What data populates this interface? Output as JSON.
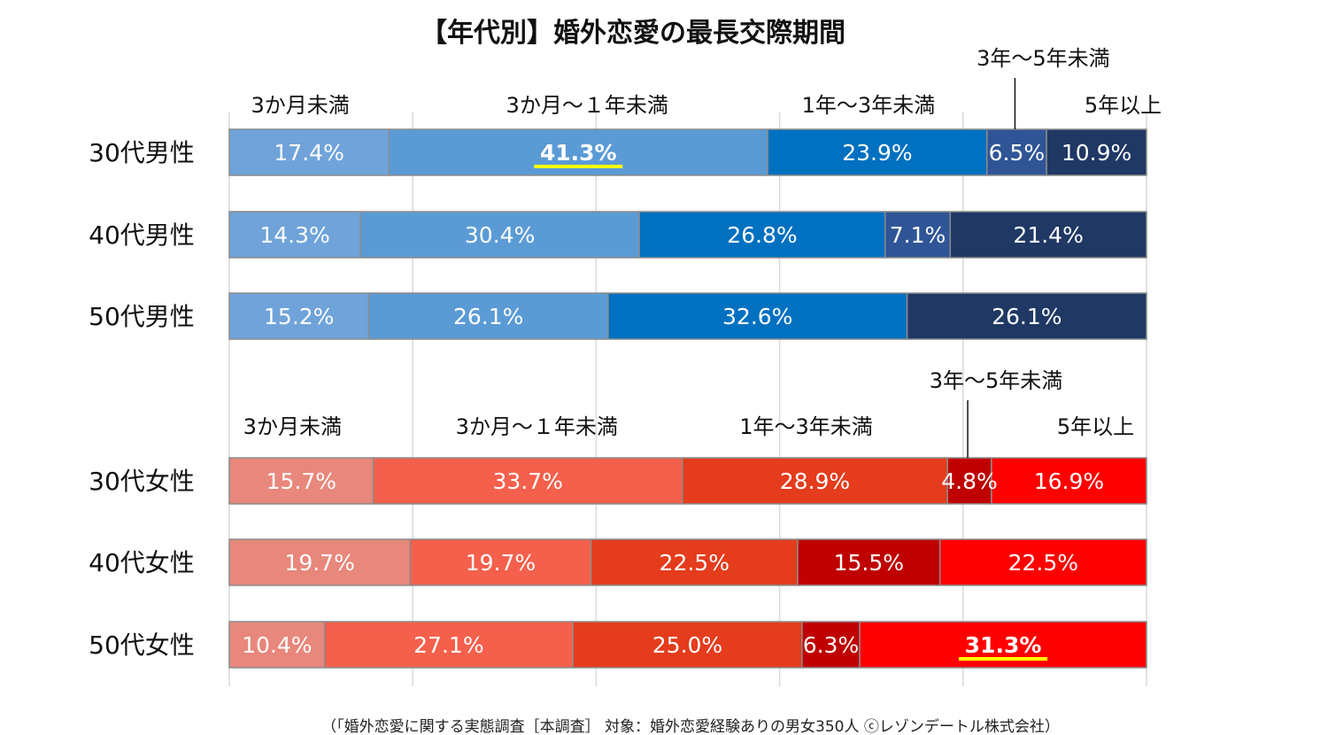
{
  "title": "【年代別】婚外恋愛の最長交際期間",
  "source": "（「婚外恋愛に関する実態調査［本調査］ 対象：婚外恋愛経験ありの男女350人 ⓒレゾンデートル株式会社）",
  "chart_data": {
    "type": "bar",
    "orientation": "horizontal",
    "stacked": true,
    "normalized": true,
    "title": "【年代別】婚外恋愛の最長交際期間",
    "xlim": [
      0,
      100
    ],
    "grid": true,
    "categories": [
      "3か月未満",
      "3か月～１年未満",
      "1年～3年未満",
      "3年～5年未満",
      "5年以上"
    ],
    "groups": [
      {
        "name": "male",
        "colors": [
          "#6fa3d9",
          "#5b9bd5",
          "#0070c0",
          "#2f5597",
          "#1f3864"
        ],
        "rows": [
          {
            "label": "30代男性",
            "values": [
              17.4,
              41.3,
              23.9,
              6.5,
              10.9
            ],
            "display": [
              "17.4%",
              "41.3%",
              "23.9%",
              "6.5%",
              "10.9%"
            ],
            "highlight": 1
          },
          {
            "label": "40代男性",
            "values": [
              14.3,
              30.4,
              26.8,
              7.1,
              21.4
            ],
            "display": [
              "14.3%",
              "30.4%",
              "26.8%",
              "7.1%",
              "21.4%"
            ],
            "highlight": -1
          },
          {
            "label": "50代男性",
            "values": [
              15.2,
              26.1,
              32.6,
              0,
              26.1
            ],
            "display": [
              "15.2%",
              "26.1%",
              "32.6%",
              "",
              "26.1%"
            ],
            "highlight": -1
          }
        ]
      },
      {
        "name": "female",
        "colors": [
          "#e8877b",
          "#f4604c",
          "#e43c1c",
          "#c00000",
          "#ff0000"
        ],
        "rows": [
          {
            "label": "30代女性",
            "values": [
              15.7,
              33.7,
              28.9,
              4.8,
              16.9
            ],
            "display": [
              "15.7%",
              "33.7%",
              "28.9%",
              "4.8%",
              "16.9%"
            ],
            "highlight": -1
          },
          {
            "label": "40代女性",
            "values": [
              19.7,
              19.7,
              22.5,
              15.5,
              22.5
            ],
            "display": [
              "19.7%",
              "19.7%",
              "22.5%",
              "15.5%",
              "22.5%"
            ],
            "highlight": -1
          },
          {
            "label": "50代女性",
            "values": [
              10.4,
              27.1,
              25.0,
              6.3,
              31.3
            ],
            "display": [
              "10.4%",
              "27.1%",
              "25.0%",
              "6.3%",
              "31.3%"
            ],
            "highlight": 4
          }
        ]
      }
    ],
    "highlight_color": "#ffff00"
  }
}
